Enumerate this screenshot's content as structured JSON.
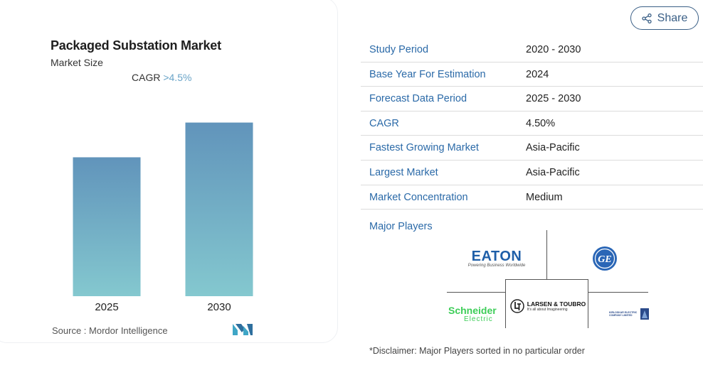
{
  "chart": {
    "title": "Packaged Substation Market",
    "subtitle": "Market Size",
    "cagr_label": "CAGR",
    "cagr_value": ">4.5%",
    "source": "Source : Mordor Intelligence"
  },
  "chart_data": {
    "type": "bar",
    "title": "Packaged Substation Market",
    "subtitle": "Market Size",
    "categories": [
      "2025",
      "2030"
    ],
    "values": [
      1.0,
      1.25
    ],
    "ylim": [
      0,
      1.35
    ],
    "grid": false,
    "colors": {
      "bar_top": "#6194bb",
      "bar_bottom": "#84c8cf"
    }
  },
  "share": {
    "label": "Share"
  },
  "info": [
    {
      "label": "Study Period",
      "value": "2020 - 2030"
    },
    {
      "label": "Base Year For Estimation",
      "value": "2024"
    },
    {
      "label": "Forecast Data Period",
      "value": "2025 - 2030"
    },
    {
      "label": "CAGR",
      "value": "4.50%"
    },
    {
      "label": "Fastest Growing Market",
      "value": "Asia-Pacific"
    },
    {
      "label": "Largest Market",
      "value": "Asia-Pacific"
    },
    {
      "label": "Market Concentration",
      "value": "Medium"
    }
  ],
  "players": {
    "title": "Major Players",
    "logos": [
      {
        "name": "eaton-logo",
        "text": "EATON",
        "tagline": "Powering Business Worldwide"
      },
      {
        "name": "ge-logo",
        "text": "GE"
      },
      {
        "name": "schneider-logo",
        "text": "Schneider",
        "tagline": "Electric"
      },
      {
        "name": "lt-logo",
        "text": "LARSEN & TOUBRO",
        "tagline": "It's all about Imagineering"
      },
      {
        "name": "kirloskar-logo",
        "text": "KIRLOSKAR ELECTRIC COMPANY LIMITED"
      }
    ]
  },
  "disclaimer": "*Disclaimer: Major Players sorted in no particular order",
  "colors": {
    "accent": "#2b6aa8",
    "cagr": "#6aa4c8",
    "share": "#3a5f86"
  }
}
